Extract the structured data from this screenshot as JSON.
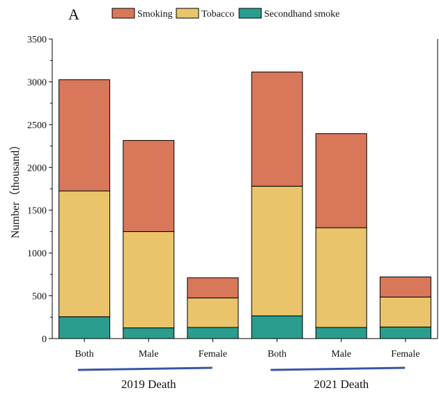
{
  "chart_data": {
    "type": "bar",
    "stacked": true,
    "panel_label": "A",
    "ylabel": "Number（thousand）",
    "ylim": [
      0,
      3500
    ],
    "yticks": [
      0,
      500,
      1000,
      1500,
      2000,
      2500,
      3000,
      3500
    ],
    "grid": false,
    "legend_position": "top",
    "categories": [
      "Both",
      "Male",
      "Female",
      "Both",
      "Male",
      "Female"
    ],
    "groups": [
      {
        "label": "2019 Death",
        "categories": [
          0,
          1,
          2
        ]
      },
      {
        "label": "2021 Death",
        "categories": [
          3,
          4,
          5
        ]
      }
    ],
    "series": [
      {
        "name": "Secondhand smoke",
        "color": "#2a9d8f",
        "values": [
          255,
          125,
          130,
          265,
          130,
          135
        ]
      },
      {
        "name": "Tobacco",
        "color": "#e9c46a",
        "values": [
          1470,
          1125,
          345,
          1515,
          1165,
          350
        ]
      },
      {
        "name": "Smoking",
        "color": "#d9775a",
        "values": [
          1300,
          1065,
          235,
          1335,
          1100,
          235
        ]
      }
    ],
    "legend_order": [
      "Smoking",
      "Tobacco",
      "Secondhand smoke"
    ],
    "group_underline_color": "#3a55a4"
  }
}
